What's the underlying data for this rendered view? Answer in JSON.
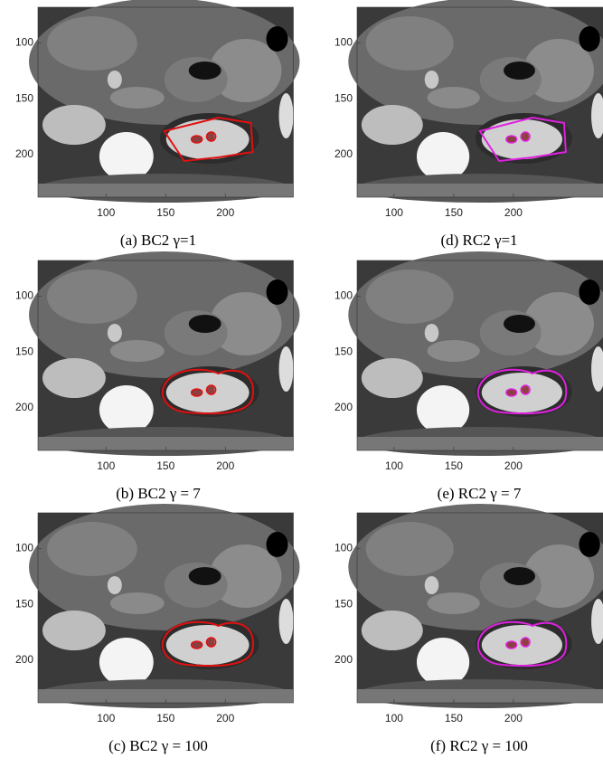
{
  "panels": [
    {
      "caption": "(a) BC2 γ=1",
      "contour_color": "#e01010",
      "xlim": [
        43,
        257
      ],
      "ylim": [
        68,
        238
      ],
      "xticks": [
        100,
        150,
        200
      ],
      "yticks": [
        100,
        150,
        200
      ]
    },
    {
      "caption": "(b) BC2 γ = 7",
      "contour_color": "#e01010",
      "xlim": [
        43,
        257
      ],
      "ylim": [
        68,
        238
      ],
      "xticks": [
        100,
        150,
        200
      ],
      "yticks": [
        100,
        150,
        200
      ]
    },
    {
      "caption": "(c) BC2 γ = 100",
      "contour_color": "#e01010",
      "xlim": [
        43,
        257
      ],
      "ylim": [
        68,
        238
      ],
      "xticks": [
        100,
        150,
        200
      ],
      "yticks": [
        100,
        150,
        200
      ]
    },
    {
      "caption": "(d) RC2 γ=1",
      "contour_color": "#e020e0",
      "xlim": [
        69,
        277
      ],
      "ylim": [
        68,
        238
      ],
      "xticks": [
        100,
        150,
        200
      ],
      "yticks": [
        100,
        150,
        200
      ]
    },
    {
      "caption": "(e) RC2 γ = 7",
      "contour_color": "#e020e0",
      "xlim": [
        69,
        277
      ],
      "ylim": [
        68,
        238
      ],
      "xticks": [
        100,
        150,
        200
      ],
      "yticks": [
        100,
        150,
        200
      ]
    },
    {
      "caption": "(f) RC2 γ = 100",
      "contour_color": "#e020e0",
      "xlim": [
        69,
        277
      ],
      "ylim": [
        68,
        238
      ],
      "xticks": [
        100,
        150,
        200
      ],
      "yticks": [
        100,
        150,
        200
      ]
    }
  ]
}
